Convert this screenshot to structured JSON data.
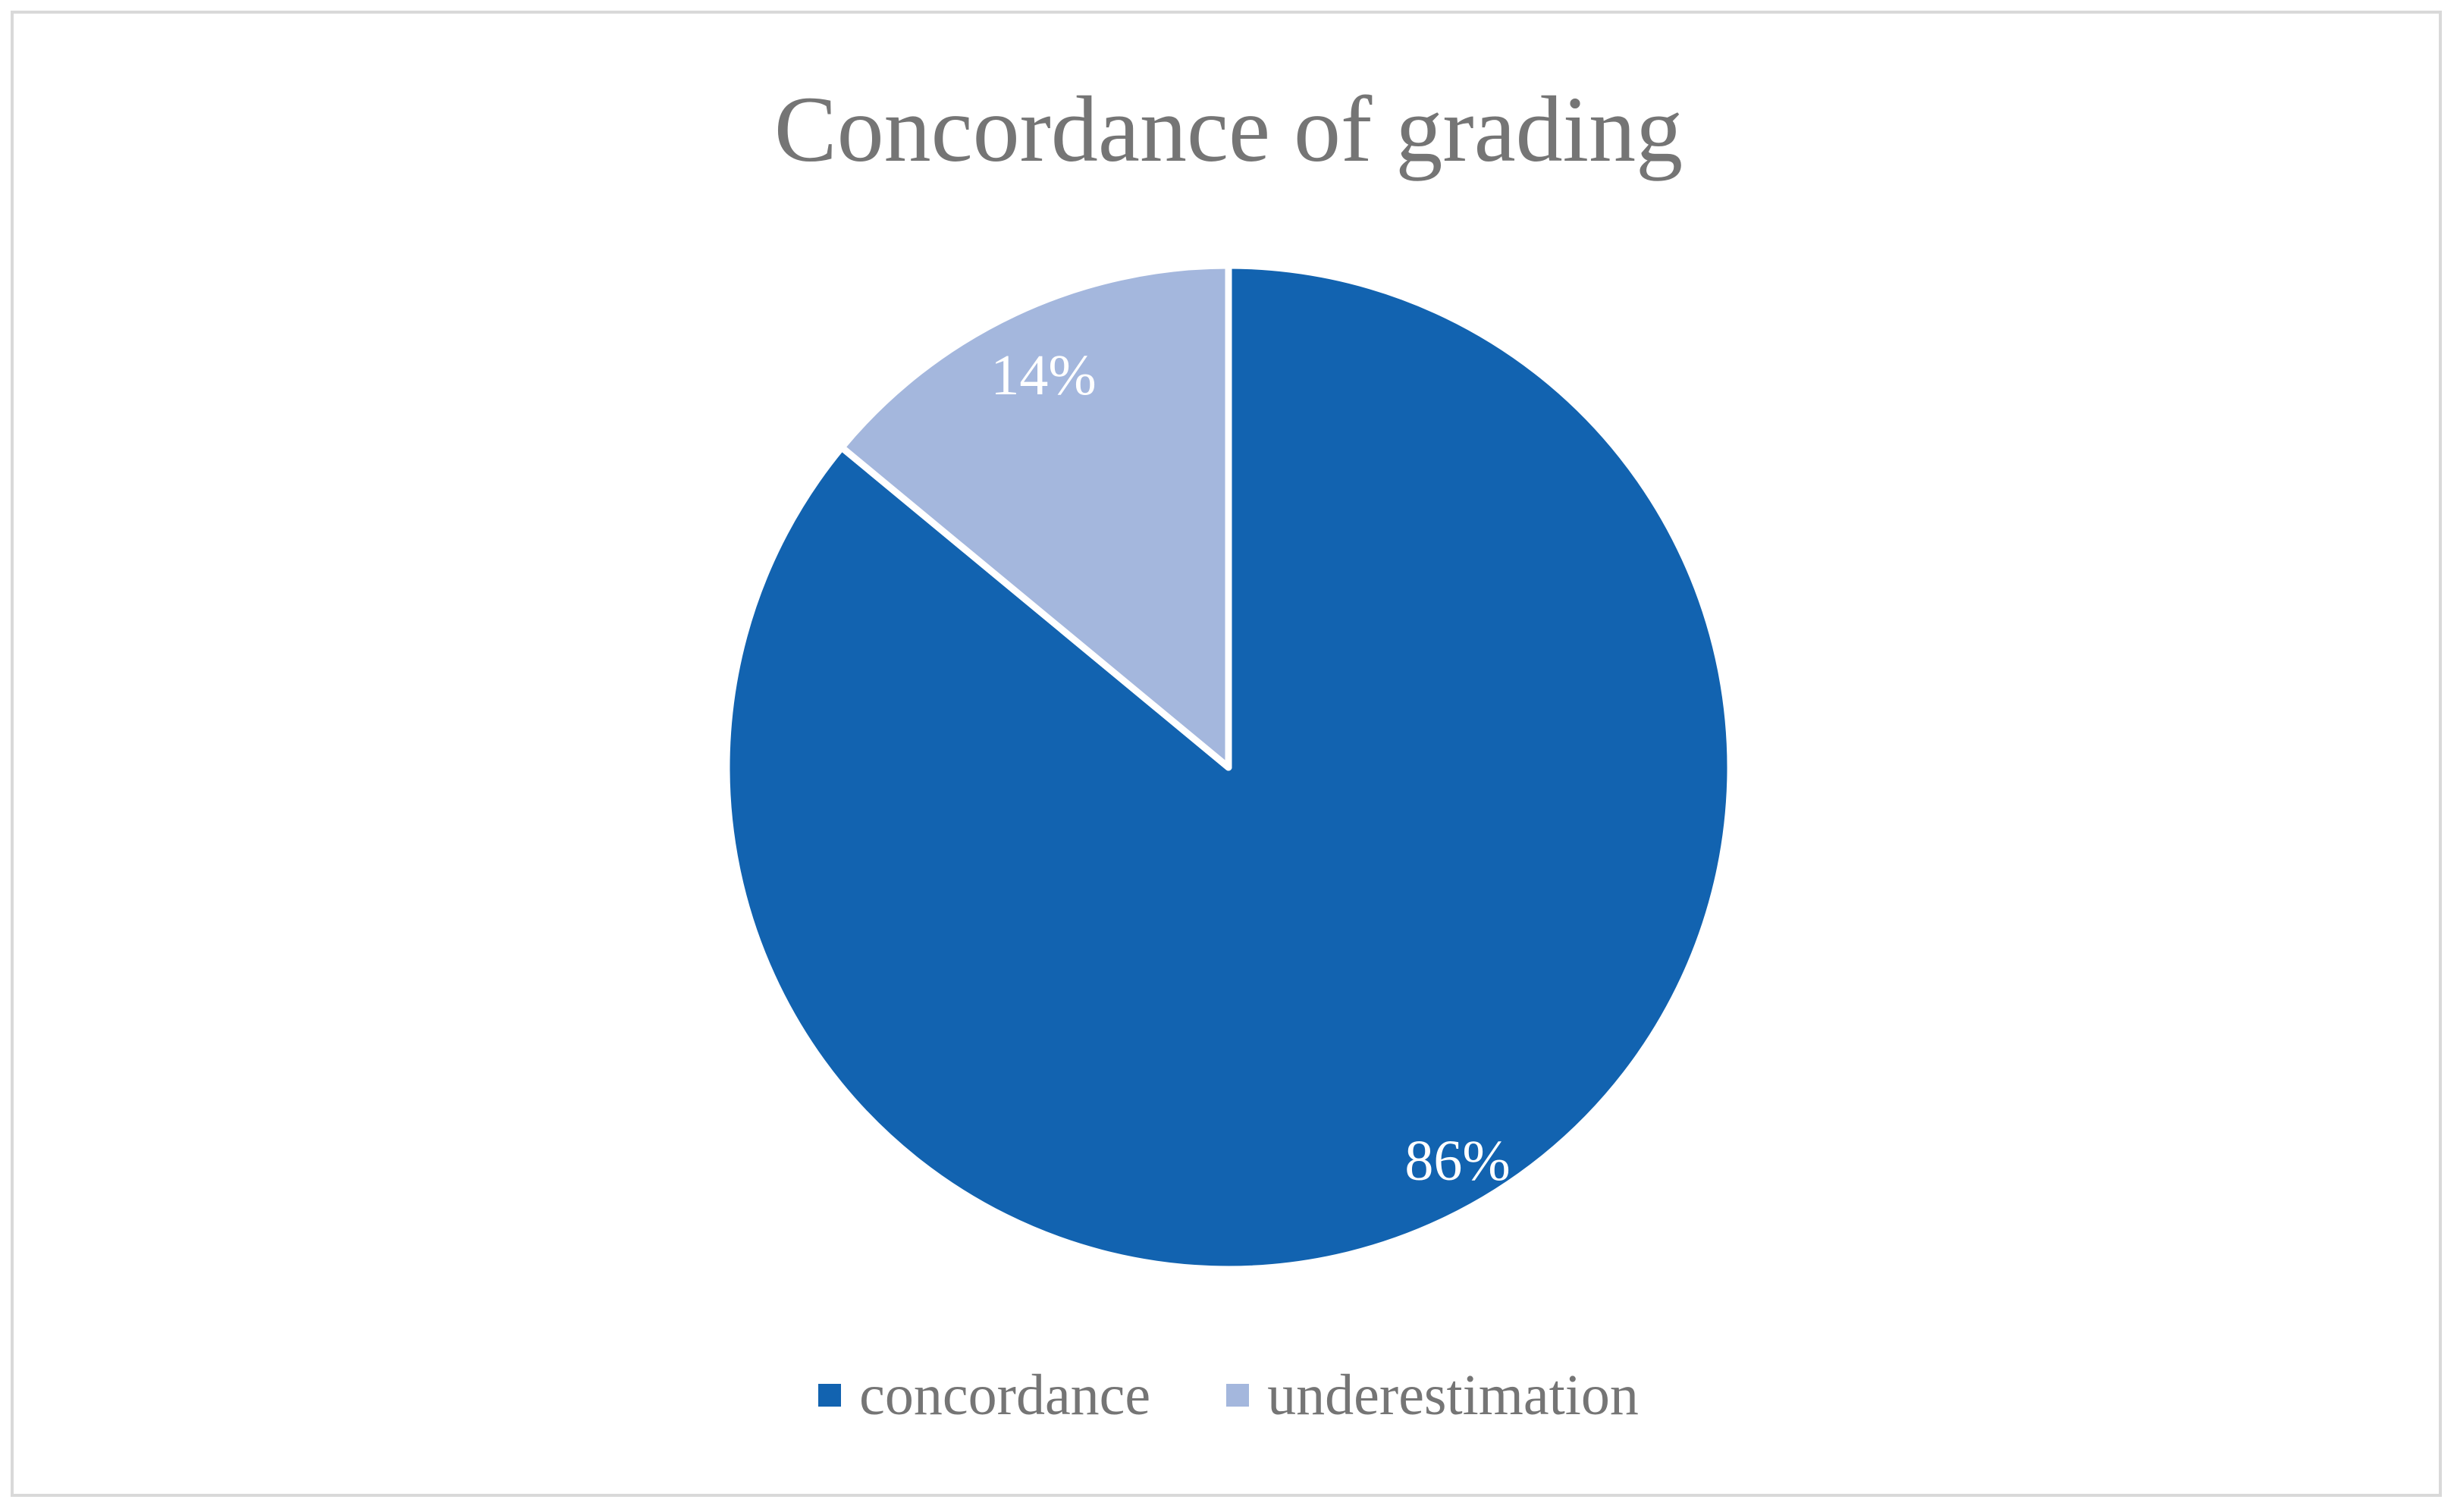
{
  "chart_data": {
    "type": "pie",
    "title": "Concordance of grading",
    "categories": [
      "concordance",
      "underestimation"
    ],
    "values": [
      86,
      14
    ],
    "data_labels": [
      "86%",
      "14%"
    ],
    "colors": [
      "#1263b0",
      "#a4b7dd"
    ],
    "legend_position": "bottom",
    "start_angle": "top, clockwise"
  }
}
